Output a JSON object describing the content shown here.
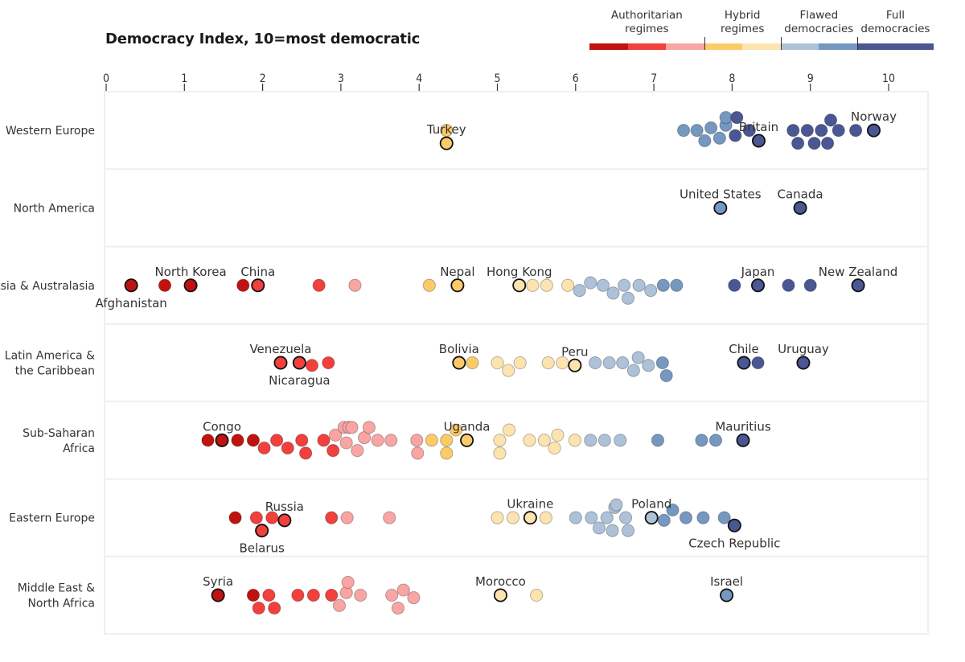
{
  "chart_data": {
    "type": "scatter",
    "subtype": "beeswarm-strip",
    "title": "Democracy Index, 10=most democratic",
    "xlabel": "",
    "ylabel": "",
    "xlim": [
      0,
      10
    ],
    "x_ticks": [
      "0",
      "1",
      "2",
      "3",
      "4",
      "5",
      "6",
      "7",
      "8",
      "9",
      "10"
    ],
    "grid": false,
    "legend": {
      "placement": "top-right",
      "categories": [
        {
          "label": "Authoritarian regimes",
          "range": [
            0,
            4
          ],
          "colors": [
            "#c0130f",
            "#f2403c",
            "#f9a5a3"
          ]
        },
        {
          "label": "Hybrid regimes",
          "range": [
            4,
            6
          ],
          "colors": [
            "#fccb67",
            "#fde4ae"
          ]
        },
        {
          "label": "Flawed democracies",
          "range": [
            6,
            8
          ],
          "colors": [
            "#adc2d8",
            "#7598c0"
          ]
        },
        {
          "label": "Full democracies",
          "range": [
            8,
            10
          ],
          "colors": [
            "#4a5794",
            "#4a5794"
          ]
        }
      ]
    },
    "color_bins": [
      {
        "max": 1.9,
        "color": "#c0130f"
      },
      {
        "max": 2.9,
        "color": "#f2403c"
      },
      {
        "max": 3.99,
        "color": "#f9a5a3"
      },
      {
        "max": 4.99,
        "color": "#fccb67"
      },
      {
        "max": 5.99,
        "color": "#fde4ae"
      },
      {
        "max": 6.99,
        "color": "#adc2d8"
      },
      {
        "max": 7.99,
        "color": "#7598c0"
      },
      {
        "max": 10,
        "color": "#4a5794"
      }
    ],
    "categories": [
      "Western Europe",
      "North America",
      "Asia & Australasia",
      "Latin America & the Caribbean",
      "Sub-Saharan Africa",
      "Eastern Europe",
      "Middle East & North Africa"
    ],
    "series": [
      {
        "name": "Western Europe",
        "label_lines": [
          "Western Europe"
        ],
        "values": [
          4.35,
          7.38,
          7.55,
          7.65,
          7.73,
          7.84,
          7.92,
          7.92,
          8.04,
          8.06,
          8.22,
          8.78,
          8.84,
          8.96,
          9.05,
          9.14,
          9.22,
          9.26,
          9.36,
          9.58
        ],
        "highlighted": [
          {
            "name": "Turkey",
            "value": 4.35
          },
          {
            "name": "Britain",
            "value": 8.34
          },
          {
            "name": "Norway",
            "value": 9.81
          }
        ]
      },
      {
        "name": "North America",
        "label_lines": [
          "North America"
        ],
        "values": [],
        "highlighted": [
          {
            "name": "United States",
            "value": 7.85
          },
          {
            "name": "Canada",
            "value": 8.87
          }
        ]
      },
      {
        "name": "Asia & Australasia",
        "label_lines": [
          "Asia & Australasia"
        ],
        "values": [
          0.75,
          1.75,
          2.72,
          3.18,
          4.13,
          5.45,
          5.63,
          5.9,
          6.05,
          6.19,
          6.35,
          6.48,
          6.62,
          6.67,
          6.81,
          6.96,
          7.12,
          7.29,
          8.03,
          8.72,
          9.0
        ],
        "highlighted": [
          {
            "name": "Afghanistan",
            "value": 0.32
          },
          {
            "name": "North Korea",
            "value": 1.08
          },
          {
            "name": "China",
            "value": 1.94
          },
          {
            "name": "Nepal",
            "value": 4.49
          },
          {
            "name": "Hong Kong",
            "value": 5.28
          },
          {
            "name": "Japan",
            "value": 8.33
          },
          {
            "name": "New Zealand",
            "value": 9.61
          }
        ]
      },
      {
        "name": "Latin America & the Caribbean",
        "label_lines": [
          "Latin America &",
          "the Caribbean"
        ],
        "values": [
          2.63,
          2.84,
          4.68,
          5.0,
          5.14,
          5.29,
          5.65,
          5.83,
          6.25,
          6.43,
          6.6,
          6.74,
          6.8,
          6.93,
          7.11,
          7.16,
          8.33
        ],
        "highlighted": [
          {
            "name": "Venezuela",
            "value": 2.23
          },
          {
            "name": "Nicaragua",
            "value": 2.47
          },
          {
            "name": "Bolivia",
            "value": 4.51
          },
          {
            "name": "Peru",
            "value": 5.99
          },
          {
            "name": "Chile",
            "value": 8.15
          },
          {
            "name": "Uruguay",
            "value": 8.91
          }
        ]
      },
      {
        "name": "Sub-Saharan Africa",
        "label_lines": [
          "Sub-Saharan",
          "Africa"
        ],
        "values": [
          1.3,
          1.68,
          1.88,
          2.02,
          2.18,
          2.32,
          2.5,
          2.55,
          2.78,
          2.9,
          2.93,
          3.04,
          3.07,
          3.1,
          3.14,
          3.21,
          3.3,
          3.36,
          3.47,
          3.64,
          3.97,
          3.98,
          4.16,
          4.35,
          4.35,
          4.47,
          5.03,
          5.03,
          5.15,
          5.41,
          5.6,
          5.73,
          5.77,
          5.99,
          6.19,
          6.37,
          6.57,
          7.05,
          7.61,
          7.79
        ],
        "highlighted": [
          {
            "name": "Congo",
            "value": 1.48
          },
          {
            "name": "Uganda",
            "value": 4.61
          },
          {
            "name": "Mauritius",
            "value": 8.14
          }
        ]
      },
      {
        "name": "Eastern Europe",
        "label_lines": [
          "Eastern Europe"
        ],
        "values": [
          1.65,
          1.92,
          2.12,
          2.88,
          3.08,
          3.62,
          5.0,
          5.2,
          5.62,
          6.0,
          6.2,
          6.3,
          6.4,
          6.47,
          6.5,
          6.52,
          6.64,
          6.67,
          7.13,
          7.24,
          7.41,
          7.63,
          7.9
        ],
        "highlighted": [
          {
            "name": "Belarus",
            "value": 1.99
          },
          {
            "name": "Russia",
            "value": 2.28
          },
          {
            "name": "Ukraine",
            "value": 5.42
          },
          {
            "name": "Poland",
            "value": 6.97
          },
          {
            "name": "Czech Republic",
            "value": 8.03
          }
        ]
      },
      {
        "name": "Middle East & North Africa",
        "label_lines": [
          "Middle East &",
          "North Africa"
        ],
        "values": [
          1.88,
          1.95,
          2.08,
          2.15,
          2.45,
          2.65,
          2.88,
          2.98,
          3.07,
          3.09,
          3.25,
          3.65,
          3.8,
          3.73,
          3.93,
          5.5
        ],
        "highlighted": [
          {
            "name": "Syria",
            "value": 1.43
          },
          {
            "name": "Morocco",
            "value": 5.04
          },
          {
            "name": "Israel",
            "value": 7.93
          }
        ]
      }
    ]
  }
}
